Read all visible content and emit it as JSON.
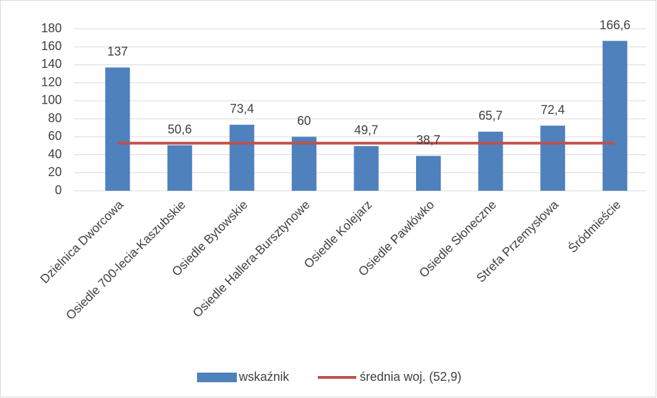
{
  "chart_data": {
    "type": "bar",
    "categories": [
      "Dzielnica Dworcowa",
      "Osiedle 700-lecia-Kaszubskie",
      "Osiedle Bytowskie",
      "Osiedle Hallera-Bursztynowe",
      "Osiedle Kolejarz",
      "Osiedle Pawłówko",
      "Osiedle Słoneczne",
      "Strefa Przemysłowa",
      "Śródmieście"
    ],
    "series": [
      {
        "name": "wskaźnik",
        "type": "bar",
        "color": "#4f81bd",
        "values": [
          137,
          50.6,
          73.4,
          60,
          49.7,
          38.7,
          65.7,
          72.4,
          166.6
        ],
        "value_labels": [
          "137",
          "50,6",
          "73,4",
          "60",
          "49,7",
          "38,7",
          "65,7",
          "72,4",
          "166,6"
        ]
      },
      {
        "name": "średnia woj. (52,9)",
        "type": "line",
        "color": "#c0504d",
        "values": [
          52.9,
          52.9,
          52.9,
          52.9,
          52.9,
          52.9,
          52.9,
          52.9,
          52.9
        ]
      }
    ],
    "ylim": [
      0,
      180
    ],
    "yticks": [
      0,
      20,
      40,
      60,
      80,
      100,
      120,
      140,
      160,
      180
    ],
    "grid": true,
    "legend": "bottom"
  }
}
